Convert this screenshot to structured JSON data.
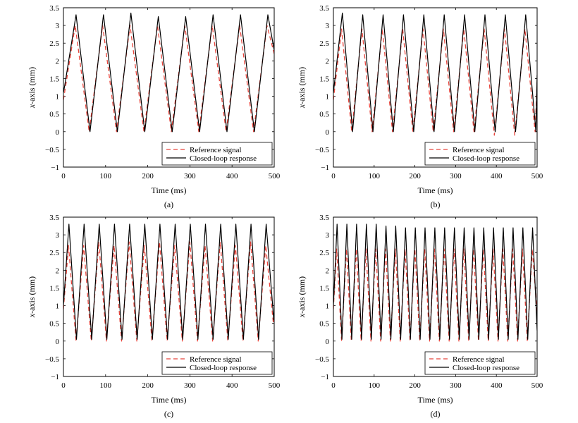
{
  "chart_data": [
    {
      "type": "line",
      "panel_label": "(a)",
      "xlabel": "Time (ms)",
      "ylabel_italic": "x",
      "ylabel_rest": "-axis (mm)",
      "xlim": [
        0,
        500
      ],
      "ylim": [
        -1,
        3.5
      ],
      "xticks": [
        0,
        100,
        200,
        300,
        400,
        500
      ],
      "yticks": [
        -1,
        -0.5,
        0,
        0.5,
        1,
        1.5,
        2,
        2.5,
        3,
        3.5
      ],
      "reference_peaks_ms": [
        28,
        93,
        158,
        223,
        288,
        353,
        418,
        483
      ],
      "response_peaks_ms": [
        30,
        95,
        160,
        225,
        290,
        355,
        420,
        485
      ],
      "series": [
        {
          "name": "Reference signal",
          "style": "dashed",
          "color": "#e8453c",
          "x": [
            0,
            28,
            61,
            93,
            126,
            158,
            191,
            223,
            256,
            288,
            321,
            353,
            386,
            418,
            451,
            483,
            500
          ],
          "y": [
            0.9,
            3.0,
            0,
            3.0,
            0,
            3.0,
            0,
            3.0,
            0,
            3.0,
            0,
            3.0,
            0,
            3.0,
            0,
            3.0,
            2.2
          ]
        },
        {
          "name": "Closed-loop response",
          "style": "solid",
          "color": "#000000",
          "x": [
            0,
            3,
            30,
            63,
            95,
            128,
            160,
            193,
            225,
            258,
            290,
            323,
            355,
            388,
            420,
            453,
            485,
            500
          ],
          "y": [
            1.1,
            1.3,
            3.3,
            0,
            3.3,
            0,
            3.35,
            0,
            3.25,
            0,
            3.25,
            0,
            3.3,
            0,
            3.3,
            0,
            3.3,
            2.3
          ]
        }
      ],
      "legend": "bottom-right"
    },
    {
      "type": "line",
      "panel_label": "(b)",
      "xlabel": "Time (ms)",
      "ylabel_italic": "x",
      "ylabel_rest": "-axis (mm)",
      "xlim": [
        0,
        500
      ],
      "ylim": [
        -1,
        3.5
      ],
      "xticks": [
        0,
        100,
        200,
        300,
        400,
        500
      ],
      "yticks": [
        -1,
        -0.5,
        0,
        0.5,
        1,
        1.5,
        2,
        2.5,
        3,
        3.5
      ],
      "series": [
        {
          "name": "Reference signal",
          "style": "dashed",
          "color": "#e8453c",
          "x": [
            0,
            20,
            45,
            70,
            95,
            120,
            145,
            170,
            195,
            220,
            245,
            270,
            295,
            320,
            345,
            370,
            395,
            420,
            445,
            470,
            495,
            500
          ],
          "y": [
            0.9,
            2.9,
            0,
            2.9,
            0,
            2.9,
            0,
            2.9,
            0,
            2.9,
            0,
            2.9,
            0,
            2.9,
            0,
            2.9,
            -0.1,
            2.9,
            -0.1,
            2.9,
            0,
            1.4
          ]
        },
        {
          "name": "Closed-loop response",
          "style": "solid",
          "color": "#000000",
          "x": [
            0,
            22,
            47,
            72,
            97,
            122,
            147,
            172,
            197,
            222,
            247,
            272,
            297,
            322,
            347,
            372,
            397,
            422,
            447,
            472,
            497,
            500
          ],
          "y": [
            1.1,
            3.35,
            0,
            3.3,
            0,
            3.3,
            0,
            3.3,
            0,
            3.3,
            0,
            3.3,
            0,
            3.3,
            0,
            3.3,
            0,
            3.3,
            0,
            3.3,
            0,
            1.6
          ]
        }
      ],
      "legend": "bottom-right"
    },
    {
      "type": "line",
      "panel_label": "(c)",
      "xlabel": "Time (ms)",
      "ylabel_italic": "x",
      "ylabel_rest": "-axis (mm)",
      "xlim": [
        0,
        500
      ],
      "ylim": [
        -1,
        3.5
      ],
      "xticks": [
        0,
        100,
        200,
        300,
        400,
        500
      ],
      "yticks": [
        -1,
        -0.5,
        0,
        0.5,
        1,
        1.5,
        2,
        2.5,
        3,
        3.5
      ],
      "series": [
        {
          "name": "Reference signal",
          "style": "dashed",
          "color": "#e8453c",
          "x": [
            0,
            12,
            30,
            48,
            66,
            84,
            102,
            120,
            138,
            156,
            174,
            192,
            210,
            228,
            246,
            264,
            282,
            300,
            318,
            336,
            354,
            372,
            390,
            408,
            426,
            444,
            462,
            480,
            498,
            500
          ],
          "y": [
            0.9,
            2.7,
            0,
            2.7,
            0,
            2.8,
            0,
            2.7,
            0,
            2.8,
            0,
            2.7,
            0,
            2.8,
            0,
            2.7,
            0,
            2.8,
            0,
            2.7,
            0,
            2.8,
            0,
            2.7,
            0,
            2.8,
            0,
            2.7,
            0.5,
            0.7
          ]
        },
        {
          "name": "Closed-loop response",
          "style": "solid",
          "color": "#000000",
          "x": [
            0,
            13,
            31,
            49,
            67,
            85,
            103,
            121,
            139,
            157,
            175,
            193,
            211,
            229,
            247,
            265,
            283,
            301,
            319,
            337,
            355,
            373,
            391,
            409,
            427,
            445,
            463,
            481,
            499,
            500
          ],
          "y": [
            1.0,
            3.3,
            0.05,
            3.3,
            0.05,
            3.3,
            0.05,
            3.3,
            0.05,
            3.3,
            0.05,
            3.3,
            0.05,
            3.3,
            0.05,
            3.3,
            0.05,
            3.3,
            0.05,
            3.3,
            0.05,
            3.3,
            0.05,
            3.3,
            0.05,
            3.3,
            0.05,
            3.3,
            0.6,
            0.8
          ]
        }
      ],
      "legend": "bottom-right"
    },
    {
      "type": "line",
      "panel_label": "(d)",
      "xlabel": "Time (ms)",
      "ylabel_italic": "x",
      "ylabel_rest": "-axis (mm)",
      "xlim": [
        0,
        500
      ],
      "ylim": [
        -1,
        3.5
      ],
      "xticks": [
        0,
        100,
        200,
        300,
        400,
        500
      ],
      "yticks": [
        -1,
        -0.5,
        0,
        0.5,
        1,
        1.5,
        2,
        2.5,
        3,
        3.5
      ],
      "series": [
        {
          "name": "Reference signal",
          "style": "dashed",
          "color": "#e8453c",
          "x": [
            0,
            8,
            20,
            32,
            44,
            56,
            68,
            80,
            92,
            104,
            116,
            128,
            140,
            152,
            164,
            176,
            188,
            200,
            212,
            224,
            236,
            248,
            260,
            272,
            284,
            296,
            308,
            320,
            332,
            344,
            356,
            368,
            380,
            392,
            404,
            416,
            428,
            440,
            452,
            464,
            476,
            488,
            500
          ],
          "y": [
            0.9,
            2.6,
            0,
            2.6,
            0,
            2.6,
            0,
            2.6,
            0,
            2.6,
            0,
            2.6,
            0,
            2.6,
            0,
            2.6,
            0,
            2.6,
            0,
            2.6,
            0,
            2.6,
            0,
            2.6,
            0,
            2.6,
            0,
            2.6,
            0,
            2.6,
            0,
            2.6,
            0,
            2.6,
            0,
            2.6,
            0,
            2.6,
            0,
            2.6,
            0,
            2.6,
            0.8
          ]
        },
        {
          "name": "Closed-loop response",
          "style": "solid",
          "color": "#000000",
          "x": [
            0,
            9,
            21,
            33,
            45,
            57,
            69,
            81,
            93,
            105,
            117,
            129,
            141,
            153,
            165,
            177,
            189,
            201,
            213,
            225,
            237,
            249,
            261,
            273,
            285,
            297,
            309,
            321,
            333,
            345,
            357,
            369,
            381,
            393,
            405,
            417,
            429,
            441,
            453,
            465,
            477,
            489,
            500
          ],
          "y": [
            1.0,
            3.3,
            0.05,
            3.3,
            0.05,
            3.3,
            0.05,
            3.3,
            0.05,
            3.3,
            0.05,
            3.25,
            0.05,
            3.25,
            0.05,
            3.2,
            0.05,
            3.2,
            0.05,
            3.2,
            0.05,
            3.2,
            0.05,
            3.2,
            0.05,
            3.2,
            0.05,
            3.2,
            0.05,
            3.2,
            0.05,
            3.2,
            0.05,
            3.2,
            0.05,
            3.2,
            0.05,
            3.2,
            0.05,
            3.2,
            0.05,
            3.2,
            0.3
          ]
        }
      ],
      "legend": "bottom-right"
    }
  ]
}
